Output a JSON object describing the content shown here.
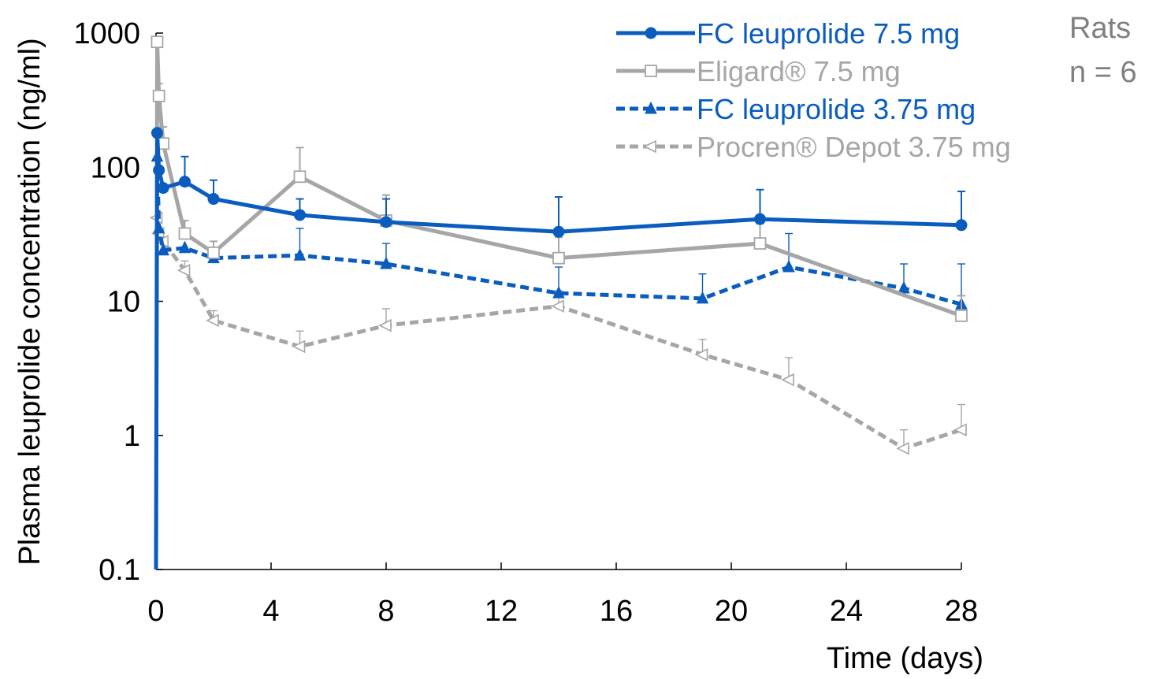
{
  "chart_data": {
    "type": "line",
    "title": "",
    "xlabel": "Time (days)",
    "ylabel": "Plasma leuprolide concentration (ng/ml)",
    "xlim": [
      0,
      28
    ],
    "ylim": [
      0.1,
      1000
    ],
    "yscale": "log",
    "x_ticks": [
      "0",
      "4",
      "8",
      "12",
      "16",
      "20",
      "24",
      "28"
    ],
    "y_ticks": [
      "0.1",
      "1",
      "10",
      "100",
      "1000"
    ],
    "legend_position": "top-right",
    "annotation": [
      "Rats",
      "n = 6"
    ],
    "series": [
      {
        "name": "FC leuprolide 7.5 mg",
        "color": "#0a5cbf",
        "line_style": "solid",
        "marker": "filled-circle",
        "points": [
          [
            0,
            0.1
          ],
          [
            0.04,
            180
          ],
          [
            0.1,
            95
          ],
          [
            0.25,
            70
          ],
          [
            1,
            78
          ],
          [
            2,
            58
          ],
          [
            5,
            44
          ],
          [
            8,
            39
          ],
          [
            14,
            33
          ],
          [
            21,
            41
          ],
          [
            28,
            37
          ]
        ],
        "errors_up": [
          null,
          null,
          null,
          45,
          120,
          80,
          58,
          58,
          60,
          68,
          66
        ]
      },
      {
        "name": "Eligard® 7.5 mg",
        "color": "#a6a6a6",
        "line_style": "solid",
        "marker": "open-square",
        "points": [
          [
            0,
            0.1
          ],
          [
            0.04,
            860
          ],
          [
            0.1,
            340
          ],
          [
            0.25,
            150
          ],
          [
            1,
            32
          ],
          [
            2,
            23
          ],
          [
            5,
            85
          ],
          [
            8,
            40
          ],
          [
            14,
            21
          ],
          [
            21,
            27
          ],
          [
            28,
            7.8
          ]
        ],
        "errors_up": [
          null,
          null,
          420,
          200,
          40,
          28,
          140,
          62,
          30,
          38,
          11
        ]
      },
      {
        "name": "FC leuprolide 3.75 mg",
        "color": "#0a5cbf",
        "line_style": "dashed",
        "marker": "filled-triangle",
        "points": [
          [
            0.04,
            120
          ],
          [
            0.1,
            35
          ],
          [
            0.25,
            24
          ],
          [
            1,
            25
          ],
          [
            2,
            21
          ],
          [
            5,
            22
          ],
          [
            8,
            19
          ],
          [
            14,
            11.5
          ],
          [
            19,
            10.5
          ],
          [
            22,
            18
          ],
          [
            26,
            12.5
          ],
          [
            28,
            9.5
          ]
        ],
        "errors_up": [
          null,
          null,
          null,
          null,
          28,
          35,
          27,
          18,
          16,
          32,
          19,
          19
        ]
      },
      {
        "name": "Procren® Depot 3.75 mg",
        "color": "#a6a6a6",
        "line_style": "dashed",
        "marker": "open-triangle-left",
        "points": [
          [
            0.04,
            42
          ],
          [
            0.1,
            32
          ],
          [
            0.25,
            28
          ],
          [
            1,
            17
          ],
          [
            2,
            7.2
          ],
          [
            5,
            4.6
          ],
          [
            8,
            6.6
          ],
          [
            14,
            9.2
          ],
          [
            19,
            4.0
          ],
          [
            22,
            2.6
          ],
          [
            26,
            0.8
          ],
          [
            28,
            1.1
          ]
        ],
        "errors_up": [
          null,
          null,
          null,
          20,
          8.5,
          6.0,
          8.8,
          12,
          5.2,
          3.8,
          1.1,
          1.7
        ]
      }
    ]
  }
}
